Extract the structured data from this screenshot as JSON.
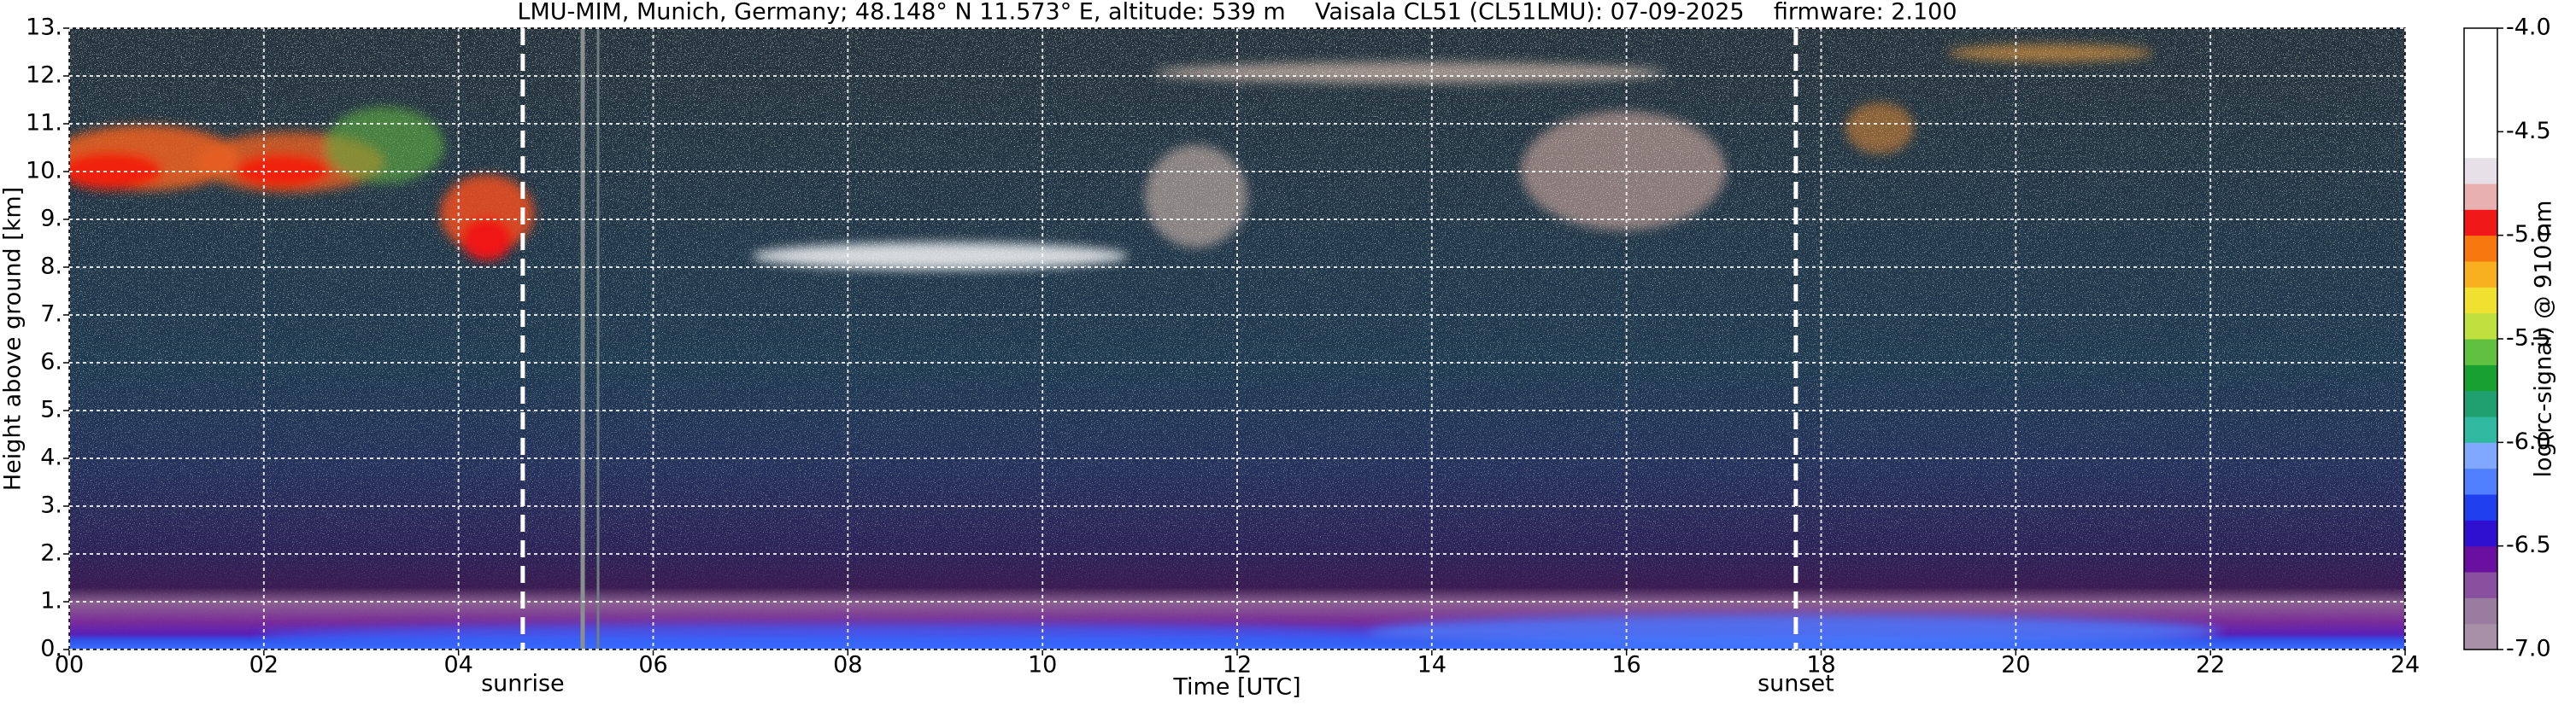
{
  "chart_data": {
    "type": "heatmap",
    "title": "LMU-MIM, Munich, Germany; 48.148° N 11.573° E, altitude: 539 m    Vaisala CL51 (CL51LMU): 07-09-2025    firmware: 2.100",
    "x_label": "Time [UTC]",
    "y_label": "Height above ground [km]",
    "xlim": [
      0,
      24
    ],
    "ylim": [
      0,
      13
    ],
    "xticks": [
      {
        "value": 0,
        "label": "00"
      },
      {
        "value": 2,
        "label": "02"
      },
      {
        "value": 4,
        "label": "04"
      },
      {
        "value": 6,
        "label": "06"
      },
      {
        "value": 8,
        "label": "08"
      },
      10,
      12,
      14,
      16,
      18,
      20,
      22,
      24
    ],
    "yticks": [
      {
        "value": 0,
        "label": "0."
      },
      {
        "value": 1,
        "label": "1."
      },
      {
        "value": 2,
        "label": "2."
      },
      {
        "value": 3,
        "label": "3."
      },
      {
        "value": 4,
        "label": "4."
      },
      {
        "value": 5,
        "label": "5."
      },
      {
        "value": 6,
        "label": "6."
      },
      {
        "value": 7,
        "label": "7."
      },
      {
        "value": 8,
        "label": "8."
      },
      {
        "value": 9,
        "label": "9."
      },
      {
        "value": 10,
        "label": "10."
      },
      {
        "value": 11,
        "label": "11."
      },
      {
        "value": 12,
        "label": "12."
      },
      {
        "value": 13,
        "label": "13."
      }
    ],
    "grid": true,
    "annotations": [
      {
        "label": "sunrise",
        "x": 4.66
      },
      {
        "label": "sunset",
        "x": 17.74
      }
    ],
    "colorbar": {
      "label": "log(rc-signal) @ 910 nm",
      "lim": [
        -7,
        -4
      ],
      "ticks": [
        {
          "value": -7,
          "label": "-7.0"
        },
        -6.5,
        {
          "value": -6,
          "label": "-6.0"
        },
        -5.5,
        {
          "value": -5,
          "label": "-5.0"
        },
        -4.5,
        {
          "value": -4,
          "label": "-4.0"
        }
      ],
      "colors": [
        "#a890a8",
        "#9a7ca0",
        "#8a50a0",
        "#6a10a0",
        "#3010d0",
        "#2040f0",
        "#5080ff",
        "#80a8ff",
        "#30b8a0",
        "#20a070",
        "#18a030",
        "#60c040",
        "#c0e040",
        "#f0e030",
        "#f8b020",
        "#f87810",
        "#f01818",
        "#e8b0b0",
        "#e8e0e8",
        "#ffffff",
        "#ffffff",
        "#ffffff",
        "#ffffff",
        "#ffffff"
      ]
    }
  }
}
